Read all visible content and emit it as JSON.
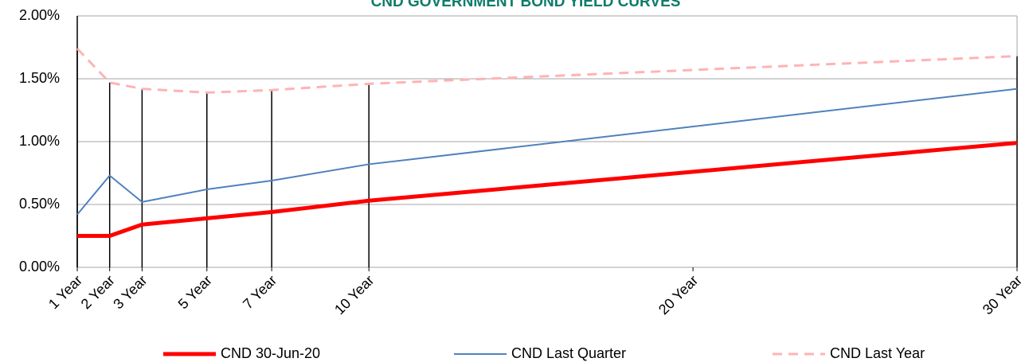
{
  "chart_data": {
    "type": "line",
    "title": "CND GOVERNMENT BOND YIELD CURVES",
    "x": [
      1,
      2,
      3,
      5,
      7,
      10,
      30
    ],
    "xlim": [
      1,
      30
    ],
    "xticks": [
      {
        "value": 1,
        "label": "1 Year"
      },
      {
        "value": 2,
        "label": "2 Year"
      },
      {
        "value": 3,
        "label": "3 Year"
      },
      {
        "value": 5,
        "label": "5 Year"
      },
      {
        "value": 7,
        "label": "7 Year"
      },
      {
        "value": 10,
        "label": "10 Year"
      },
      {
        "value": 20,
        "label": "20 Year"
      },
      {
        "value": 30,
        "label": "30 Year"
      }
    ],
    "ylim": [
      0,
      2
    ],
    "yticks": [
      {
        "value": 0,
        "label": "0.00%"
      },
      {
        "value": 0.5,
        "label": "0.50%"
      },
      {
        "value": 1,
        "label": "1.00%"
      },
      {
        "value": 1.5,
        "label": "1.50%"
      },
      {
        "value": 2,
        "label": "2.00%"
      }
    ],
    "grid": true,
    "drop_lines": true,
    "legend": "bottom",
    "series": [
      {
        "name": "CND 30-Jun-20",
        "color": "#ff0000",
        "values": [
          0.25,
          0.25,
          0.34,
          0.39,
          0.44,
          0.53,
          0.99
        ]
      },
      {
        "name": "CND Last Quarter",
        "color": "#4f81bd",
        "values": [
          0.42,
          0.73,
          0.52,
          0.62,
          0.69,
          0.82,
          1.42
        ]
      },
      {
        "name": "CND Last Year",
        "color": "#ffb3b3",
        "values": [
          1.74,
          1.47,
          1.42,
          1.39,
          1.41,
          1.46,
          1.68
        ]
      }
    ]
  }
}
